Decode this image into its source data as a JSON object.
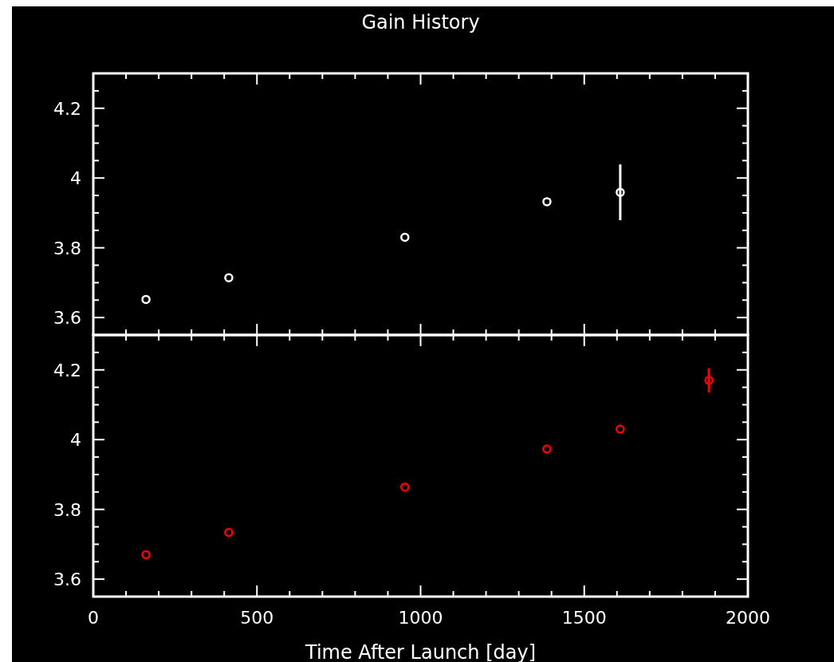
{
  "chart_data": [
    {
      "type": "scatter",
      "title": "Gain History",
      "x": [
        161,
        414,
        952,
        1386,
        1610
      ],
      "series": [
        {
          "color": "#ffffff",
          "values": [
            3.652,
            3.714,
            3.83,
            3.932,
            3.959
          ],
          "errors": [
            null,
            null,
            null,
            null,
            0.08
          ]
        }
      ],
      "xlim": [
        0,
        2000
      ],
      "ylim": [
        3.55,
        4.3
      ],
      "xticks": [
        0,
        {
          "value": 100,
          "label": null
        },
        {
          "value": 200,
          "label": null
        },
        {
          "value": 300,
          "label": null
        },
        {
          "value": 400,
          "label": null
        },
        500,
        {
          "value": 600,
          "label": null
        },
        {
          "value": 700,
          "label": null
        },
        {
          "value": 800,
          "label": null
        },
        {
          "value": 900,
          "label": null
        },
        1000,
        {
          "value": 1100,
          "label": null
        },
        {
          "value": 1200,
          "label": null
        },
        {
          "value": 1300,
          "label": null
        },
        {
          "value": 1400,
          "label": null
        },
        1500,
        {
          "value": 1600,
          "label": null
        },
        {
          "value": 1700,
          "label": null
        },
        {
          "value": 1800,
          "label": null
        },
        {
          "value": 1900,
          "label": null
        },
        2000
      ],
      "yticks": [
        3.6,
        {
          "value": 3.65,
          "label": null
        },
        {
          "value": 3.7,
          "label": null
        },
        {
          "value": 3.75,
          "label": null
        },
        3.8,
        {
          "value": 3.85,
          "label": null
        },
        {
          "value": 3.9,
          "label": null
        },
        {
          "value": 3.95,
          "label": null
        },
        {
          "value": 4.0,
          "label": "4"
        },
        {
          "value": 4.05,
          "label": null
        },
        {
          "value": 4.1,
          "label": null
        },
        {
          "value": 4.15,
          "label": null
        },
        4.2,
        {
          "value": 4.25,
          "label": null
        }
      ],
      "tick_labels": "y",
      "marker": "circle",
      "grid": false
    },
    {
      "type": "scatter",
      "xlabel": "Time After Launch [day]",
      "x": [
        161,
        414,
        952,
        1386,
        1610,
        1881
      ],
      "series": [
        {
          "color": "#ff0000",
          "values": [
            3.67,
            3.734,
            3.864,
            3.973,
            4.03,
            4.17
          ],
          "errors": [
            null,
            null,
            null,
            null,
            null,
            0.035
          ]
        }
      ],
      "xlim": [
        0,
        2000
      ],
      "ylim": [
        3.55,
        4.3
      ],
      "xticks": [
        0,
        {
          "value": 100,
          "label": null
        },
        {
          "value": 200,
          "label": null
        },
        {
          "value": 300,
          "label": null
        },
        {
          "value": 400,
          "label": null
        },
        500,
        {
          "value": 600,
          "label": null
        },
        {
          "value": 700,
          "label": null
        },
        {
          "value": 800,
          "label": null
        },
        {
          "value": 900,
          "label": null
        },
        1000,
        {
          "value": 1100,
          "label": null
        },
        {
          "value": 1200,
          "label": null
        },
        {
          "value": 1300,
          "label": null
        },
        {
          "value": 1400,
          "label": null
        },
        1500,
        {
          "value": 1600,
          "label": null
        },
        {
          "value": 1700,
          "label": null
        },
        {
          "value": 1800,
          "label": null
        },
        {
          "value": 1900,
          "label": null
        },
        2000
      ],
      "yticks": [
        3.6,
        {
          "value": 3.65,
          "label": null
        },
        {
          "value": 3.7,
          "label": null
        },
        {
          "value": 3.75,
          "label": null
        },
        3.8,
        {
          "value": 3.85,
          "label": null
        },
        {
          "value": 3.9,
          "label": null
        },
        {
          "value": 3.95,
          "label": null
        },
        {
          "value": 4.0,
          "label": "4"
        },
        {
          "value": 4.05,
          "label": null
        },
        {
          "value": 4.1,
          "label": null
        },
        {
          "value": 4.15,
          "label": null
        },
        4.2,
        {
          "value": 4.25,
          "label": null
        }
      ],
      "marker": "circle",
      "grid": false
    }
  ]
}
